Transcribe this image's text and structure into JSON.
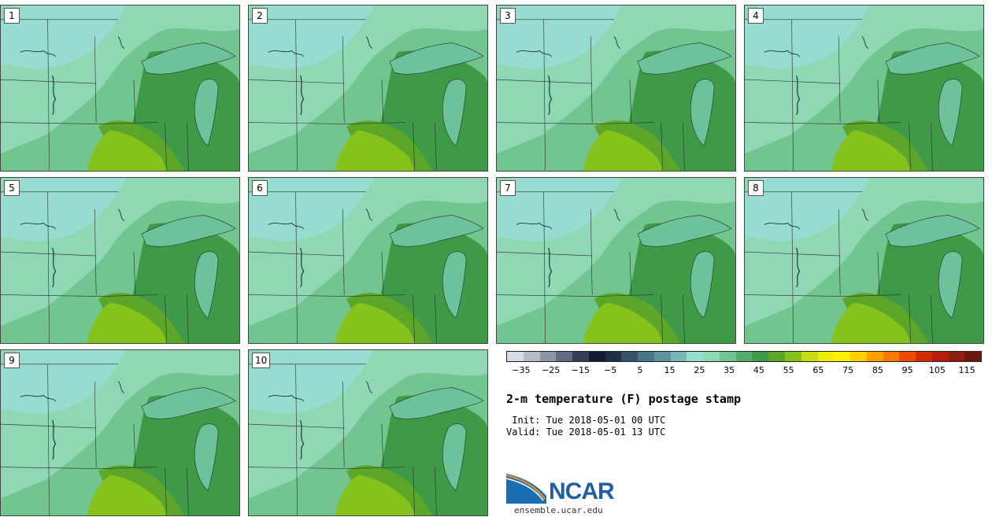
{
  "panels": [
    {
      "label": "1"
    },
    {
      "label": "2"
    },
    {
      "label": "3"
    },
    {
      "label": "4"
    },
    {
      "label": "5"
    },
    {
      "label": "6"
    },
    {
      "label": "7"
    },
    {
      "label": "8"
    },
    {
      "label": "9"
    },
    {
      "label": "10"
    }
  ],
  "colorbar": {
    "ticks": [
      "−35",
      "−25",
      "−15",
      "−5",
      "5",
      "15",
      "25",
      "35",
      "45",
      "55",
      "65",
      "75",
      "85",
      "95",
      "105",
      "115"
    ],
    "colors": [
      "#d6dde4",
      "#b3bcc6",
      "#8c97a6",
      "#5f6b80",
      "#34405a",
      "#0f1a33",
      "#1d3148",
      "#35536a",
      "#4a7487",
      "#5f949f",
      "#79b6b5",
      "#96dcd1",
      "#8fd8b3",
      "#72c58f",
      "#56ad6d",
      "#3f9a47",
      "#5ca629",
      "#86c21c",
      "#c6dd12",
      "#f0ec0a",
      "#fff200",
      "#ffd000",
      "#ffa000",
      "#ff7a00",
      "#f04a00",
      "#d42a00",
      "#b81e10",
      "#8f1e12",
      "#6b1810"
    ],
    "colorbar_range": [
      -40,
      120
    ]
  },
  "title": "2-m temperature (F) postage stamp",
  "init_text": " Init: Tue 2018-05-01 00 UTC",
  "valid_text": "Valid: Tue 2018-05-01 13 UTC",
  "logo": {
    "text": "NCAR",
    "colors": {
      "blue": "#1a6fb3",
      "orange": "#e8892b"
    }
  },
  "site": "ensemble.ucar.edu",
  "map_colors": {
    "cold": "#96dcd1",
    "cool": "#8fd8b3",
    "mid": "#72c58f",
    "warm": "#56ad6d",
    "warmer": "#3f9a47",
    "hot": "#5ca629",
    "hottest": "#86c21c",
    "lake": "#6cc29a",
    "border": "#2a2a2a"
  }
}
